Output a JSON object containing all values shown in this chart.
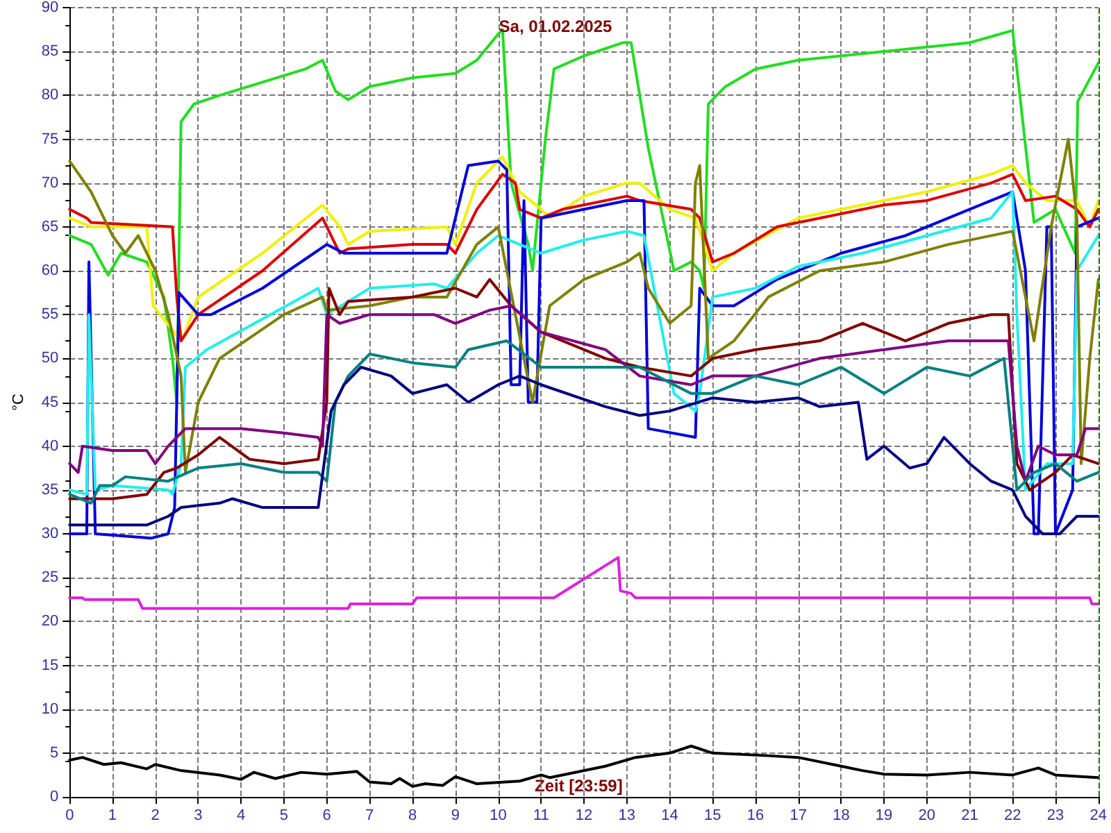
{
  "chart_data": {
    "type": "line",
    "title": "Sa, 01.02.2025",
    "xlabel": "Zeit [23:59]",
    "ylabel": "°C",
    "xlim": [
      0,
      24
    ],
    "xticks": [
      0,
      1,
      2,
      3,
      4,
      5,
      6,
      7,
      8,
      9,
      10,
      11,
      12,
      13,
      14,
      15,
      16,
      17,
      18,
      19,
      20,
      21,
      22,
      23,
      24
    ],
    "ylim": [
      0,
      90
    ],
    "yticks": [
      0,
      5,
      10,
      15,
      20,
      25,
      30,
      35,
      40,
      45,
      50,
      55,
      60,
      65,
      70,
      75,
      80,
      85,
      90
    ],
    "grid": true,
    "line_style": "solid",
    "ref_lines": [
      {
        "axis": "x",
        "value": 24,
        "color": "#008000",
        "line_style": "dashed"
      }
    ],
    "series": [
      {
        "color": "#22dd22",
        "x": [
          0,
          0.5,
          0.9,
          1.2,
          1.8,
          2.2,
          2.4,
          2.5,
          2.6,
          2.9,
          3.5,
          4.5,
          5.5,
          5.9,
          6.2,
          6.5,
          7,
          8,
          9,
          9.5,
          10,
          10.1,
          10.3,
          10.7,
          10.8,
          11.1,
          11.3,
          12,
          12.9,
          13.1,
          13.5,
          14.1,
          14.5,
          14.7,
          14.8,
          14.9,
          15.3,
          16,
          17,
          18,
          19,
          20,
          21,
          22,
          22.5,
          23,
          23.46,
          23.52,
          24
        ],
        "values": [
          64,
          63,
          59.5,
          62,
          61,
          57,
          50,
          45,
          77,
          79,
          80,
          81.5,
          83,
          84,
          80.5,
          79.5,
          81,
          82,
          82.5,
          84,
          87,
          87.5,
          70,
          63,
          60,
          75,
          83,
          84.5,
          86,
          86,
          74,
          60,
          61,
          60,
          58,
          79,
          81,
          83,
          84,
          84.5,
          85,
          85.5,
          86,
          87.4,
          65.5,
          67,
          62,
          79.3,
          83.7
        ]
      },
      {
        "color": "#f0f000",
        "x": [
          0,
          0.5,
          1.8,
          1.95,
          2.6,
          2.7,
          3,
          4.5,
          5.9,
          6.3,
          6.5,
          7,
          8.8,
          9,
          9.5,
          10.1,
          10.5,
          11,
          11.2,
          12,
          13,
          13.3,
          14,
          14.6,
          15,
          15.5,
          17,
          19,
          20,
          21.5,
          22,
          22.3,
          22.8,
          23.5,
          23.8,
          24
        ],
        "values": [
          66,
          65,
          65,
          56,
          52,
          53,
          57,
          62,
          67.5,
          65,
          63,
          64.5,
          65,
          63,
          70,
          73,
          69,
          67,
          66,
          68.5,
          70,
          70,
          67,
          66,
          60,
          62,
          66,
          68,
          69,
          71,
          72,
          70,
          68,
          68,
          65,
          68
        ]
      },
      {
        "color": "#dd0000",
        "x": [
          0,
          0.4,
          0.5,
          2.4,
          2.5,
          2.6,
          3,
          4.5,
          5.9,
          6.3,
          6.5,
          8,
          8.8,
          9,
          9.5,
          10.1,
          10.4,
          10.5,
          11,
          11.5,
          13,
          13.3,
          14.5,
          14.7,
          15,
          15.5,
          16.5,
          17.5,
          19,
          20,
          21.5,
          22,
          22.3,
          23,
          23.5,
          23.8,
          24
        ],
        "values": [
          67,
          66,
          65.5,
          65,
          57,
          52,
          55,
          60,
          66,
          62,
          62.5,
          63,
          63,
          62,
          67,
          71,
          70,
          67,
          66,
          67,
          68.5,
          68,
          67,
          66,
          61,
          62,
          65,
          66,
          67.5,
          68,
          70,
          71,
          68,
          68.5,
          67,
          65,
          67
        ]
      },
      {
        "color": "#0000dd",
        "x": [
          0,
          0.4,
          0.45,
          0.6,
          1.9,
          2.3,
          2.45,
          2.55,
          3,
          3.3,
          4.5,
          5.7,
          6,
          6.4,
          8.8,
          9.3,
          10,
          10.2,
          10.3,
          10.5,
          10.6,
          10.7,
          10.9,
          11,
          12,
          13,
          13.4,
          13.5,
          14.6,
          14.7,
          15,
          15.5,
          16.5,
          18,
          19.5,
          20.5,
          21.5,
          22,
          22.3,
          22.5,
          22.6,
          22.8,
          22.9,
          23,
          23.4,
          23.5,
          24
        ],
        "values": [
          30,
          30,
          61,
          30,
          29.5,
          30,
          33,
          57.5,
          55,
          55,
          58,
          62,
          63,
          62,
          62,
          72,
          72.5,
          71.5,
          47,
          47,
          68,
          45,
          45,
          66,
          67,
          68,
          68,
          42,
          41,
          58,
          56,
          56,
          59,
          62,
          64,
          66,
          68,
          69,
          60,
          30,
          30,
          65,
          65,
          30,
          35,
          65,
          66
        ]
      },
      {
        "color": "#22eeee",
        "x": [
          0,
          0.4,
          0.45,
          0.6,
          1,
          2.3,
          2.4,
          2.6,
          2.7,
          3.2,
          5.8,
          6,
          6.5,
          7,
          8.5,
          8.8,
          9.5,
          10,
          10.5,
          11,
          12,
          13,
          13.4,
          14.1,
          14.6,
          14.7,
          15,
          16,
          17,
          18.5,
          20,
          21.5,
          22,
          22.1,
          22.3,
          22.8,
          23.4,
          23.5,
          24
        ],
        "values": [
          35,
          34.5,
          55,
          35,
          35.5,
          35,
          34.5,
          38,
          49,
          51,
          58,
          55,
          56.5,
          58,
          58.5,
          58,
          62,
          64,
          63,
          62,
          63.5,
          64.5,
          64,
          46,
          44,
          46,
          57,
          58,
          60.5,
          62,
          64,
          66,
          69,
          55,
          35,
          38,
          38,
          60,
          64
        ]
      },
      {
        "color": "#808000",
        "x": [
          0,
          0.5,
          1,
          1.3,
          1.6,
          2,
          2.3,
          2.6,
          2.7,
          3,
          3.5,
          5,
          5.9,
          6,
          7,
          8,
          8.8,
          9.5,
          10,
          10.4,
          10.8,
          11.2,
          12,
          13,
          13.3,
          13.5,
          14,
          14.5,
          14.6,
          14.7,
          14.9,
          15.5,
          16.3,
          17.5,
          19,
          20.5,
          22,
          22.5,
          22.9,
          23.3,
          23.5,
          23.6,
          23.8,
          24
        ],
        "values": [
          72.5,
          69,
          64,
          62,
          64,
          60,
          55,
          48,
          37,
          45,
          50,
          55,
          57,
          55.5,
          56,
          57,
          57,
          63,
          65,
          55,
          45,
          56,
          59,
          61,
          62,
          58,
          54,
          56,
          70,
          72,
          50,
          52,
          57,
          60,
          61,
          63,
          64.5,
          52,
          65,
          75,
          66,
          38,
          50,
          59
        ]
      },
      {
        "color": "#800000",
        "x": [
          0,
          1,
          1.8,
          2.2,
          2.5,
          3,
          3.5,
          4.2,
          5,
          5.8,
          6,
          6.05,
          6.3,
          6.5,
          8,
          9,
          9.5,
          9.8,
          10.3,
          11,
          12.5,
          13.3,
          14.5,
          15,
          16,
          17.5,
          18.5,
          19.5,
          20.5,
          21.5,
          21.9,
          22.1,
          22.4,
          23,
          23.4,
          24
        ],
        "values": [
          34,
          34,
          34.5,
          37,
          37.5,
          39,
          41,
          38.5,
          38,
          38.5,
          45,
          58,
          55,
          56.5,
          57,
          58,
          57,
          59,
          56,
          53,
          50,
          49,
          48,
          50,
          51,
          52,
          54,
          52,
          54,
          55,
          55,
          38,
          35,
          37,
          39,
          38
        ]
      },
      {
        "color": "#800080",
        "x": [
          0,
          0.2,
          0.3,
          1,
          1.8,
          2,
          2.3,
          2.7,
          4,
          5,
          5.8,
          5.9,
          6,
          6.3,
          7,
          8.5,
          9,
          9.8,
          10.3,
          11,
          12.5,
          13.3,
          14.5,
          15,
          16,
          17.5,
          19,
          20.5,
          21.9,
          22.1,
          22.3,
          22.6,
          23,
          23.5,
          23.7,
          24
        ],
        "values": [
          38,
          37,
          40,
          39.5,
          39.5,
          38,
          40,
          42,
          42,
          41.5,
          41,
          40,
          55,
          54,
          55,
          55,
          54,
          55.5,
          56,
          53,
          51,
          48,
          47,
          48,
          48,
          50,
          51,
          52,
          52,
          40,
          36,
          40,
          39,
          39,
          42,
          42
        ]
      },
      {
        "color": "#008080",
        "x": [
          0,
          0.5,
          0.7,
          1,
          1.3,
          2.3,
          3,
          4,
          5,
          5.8,
          6,
          6.2,
          6.5,
          7,
          8,
          9,
          9.3,
          10.2,
          11,
          13.3,
          14.5,
          15,
          16,
          17,
          18,
          19,
          20,
          21,
          21.8,
          22.1,
          22.5,
          23,
          23.5,
          24
        ],
        "values": [
          34.5,
          33.5,
          35.5,
          35.5,
          36.5,
          36,
          37.5,
          38,
          37,
          37,
          36,
          45,
          48,
          50.5,
          49.5,
          49,
          51,
          52,
          49,
          49,
          46,
          46,
          48,
          47,
          49,
          46,
          49,
          48,
          50,
          35,
          37,
          38,
          36,
          37
        ]
      },
      {
        "color": "#000080",
        "x": [
          0,
          1.8,
          2.3,
          2.6,
          3.5,
          3.8,
          4.5,
          5.8,
          6.1,
          6.4,
          6.8,
          7.5,
          8,
          8.8,
          9.3,
          10,
          10.5,
          11,
          12.5,
          13.3,
          14,
          15,
          16,
          17,
          17.5,
          18.4,
          18.6,
          19,
          19.6,
          20,
          20.4,
          21,
          21.5,
          22,
          22.3,
          22.7,
          23.1,
          23.5,
          24
        ],
        "values": [
          31,
          31,
          32,
          33,
          33.5,
          34,
          33,
          33,
          44,
          47,
          49,
          48,
          46,
          47,
          45,
          47,
          48,
          47,
          44.5,
          43.5,
          44,
          45.5,
          45,
          45.5,
          44.5,
          45,
          38.5,
          40,
          37.5,
          38,
          41,
          38,
          36,
          35,
          32,
          30,
          30,
          32,
          32
        ]
      },
      {
        "color": "#dd22dd",
        "x": [
          0,
          0.3,
          0.35,
          1.6,
          1.7,
          6.5,
          6.55,
          8,
          8.1,
          11.3,
          12.8,
          12.85,
          13.1,
          13.2,
          23.8,
          23.85,
          24
        ],
        "values": [
          22.7,
          22.7,
          22.5,
          22.5,
          21.5,
          21.5,
          22,
          22,
          22.7,
          22.7,
          27.3,
          23.5,
          23.2,
          22.7,
          22.7,
          22,
          22
        ]
      },
      {
        "color": "#000000",
        "x": [
          0,
          0.3,
          0.8,
          1.2,
          1.8,
          2,
          2.6,
          3.5,
          4,
          4.3,
          4.8,
          5.4,
          6,
          6.7,
          7,
          7.5,
          7.7,
          8,
          8.3,
          8.7,
          9,
          9.5,
          10.5,
          11,
          11.2,
          12.5,
          13.2,
          14,
          14.5,
          15,
          16.3,
          17,
          18,
          18.5,
          19,
          20,
          21,
          22,
          22.6,
          23,
          24
        ],
        "values": [
          4.2,
          4.5,
          3.7,
          3.9,
          3.2,
          3.7,
          3,
          2.5,
          2,
          2.8,
          2.1,
          2.8,
          2.6,
          2.9,
          1.7,
          1.5,
          2.1,
          1.2,
          1.5,
          1.3,
          2.3,
          1.5,
          1.8,
          2.5,
          2.2,
          3.5,
          4.5,
          5,
          5.8,
          5,
          4.7,
          4.5,
          3.5,
          3,
          2.6,
          2.5,
          2.8,
          2.5,
          3.3,
          2.5,
          2.2
        ]
      }
    ]
  }
}
